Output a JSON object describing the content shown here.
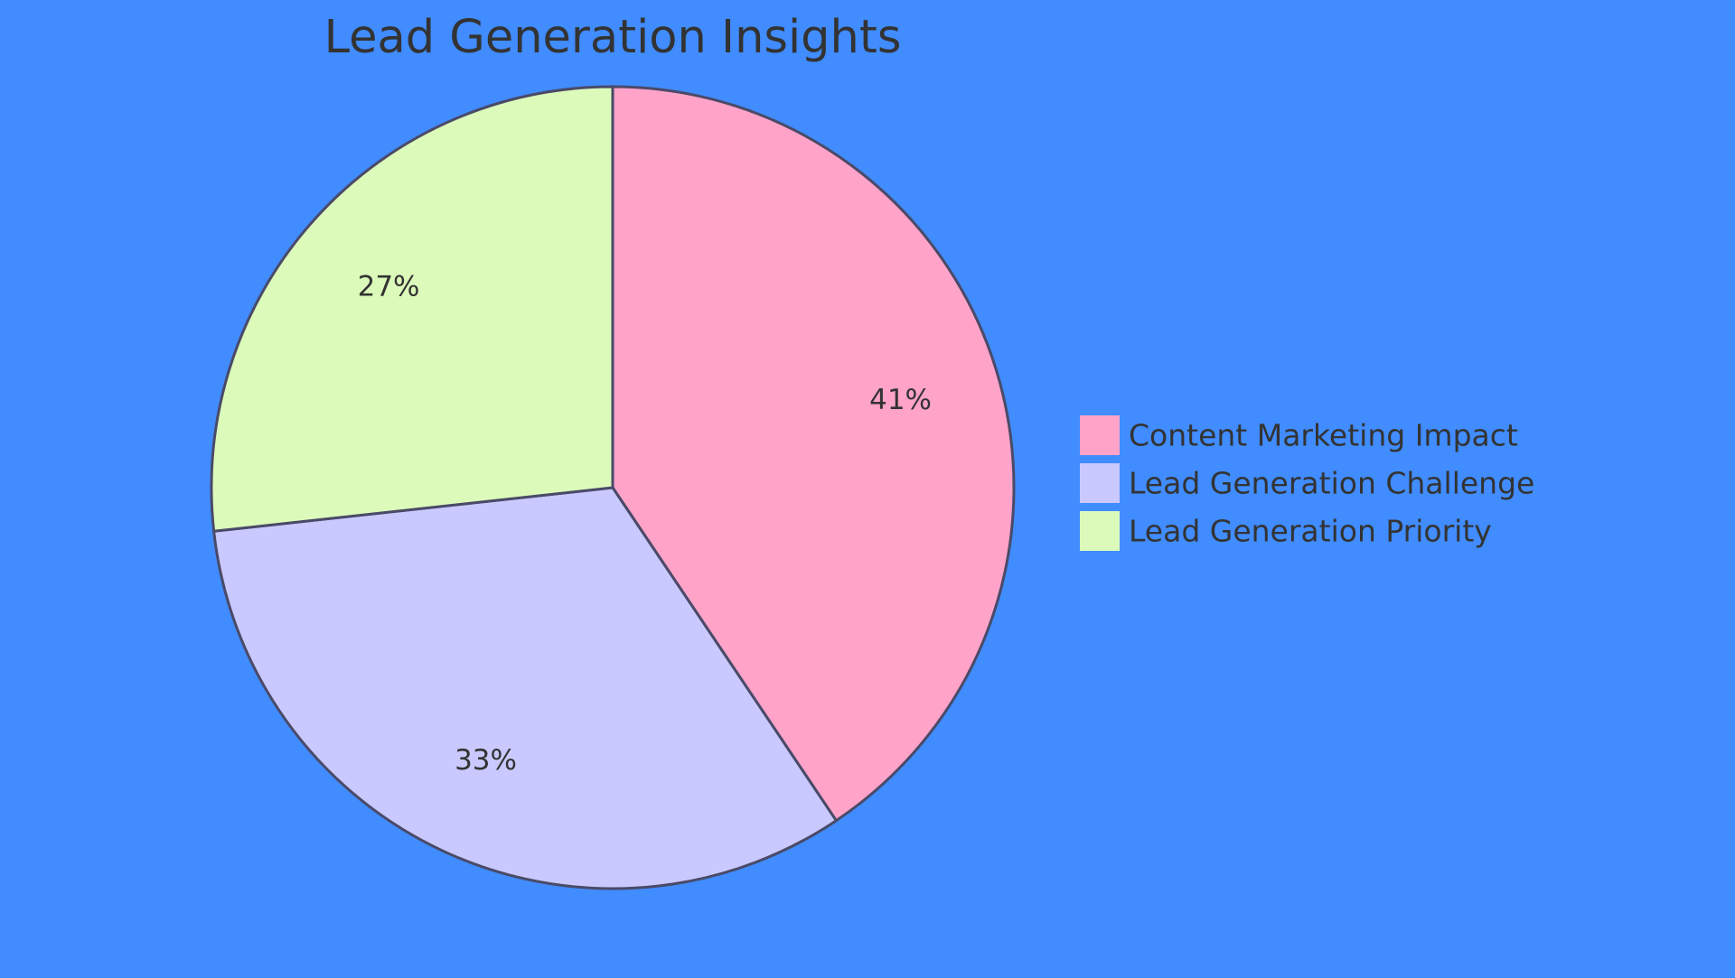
{
  "chart_data": {
    "type": "pie",
    "title": "Lead Generation Insights",
    "categories": [
      "Content Marketing Impact",
      "Lead Generation Challenge",
      "Lead Generation Priority"
    ],
    "values": [
      41,
      33,
      27
    ],
    "labels": [
      "41%",
      "33%",
      "27%"
    ],
    "colors": [
      "#ffa3c9",
      "#c9c9ff",
      "#dcfbbb"
    ],
    "background": "#418cff",
    "legend": "right"
  }
}
